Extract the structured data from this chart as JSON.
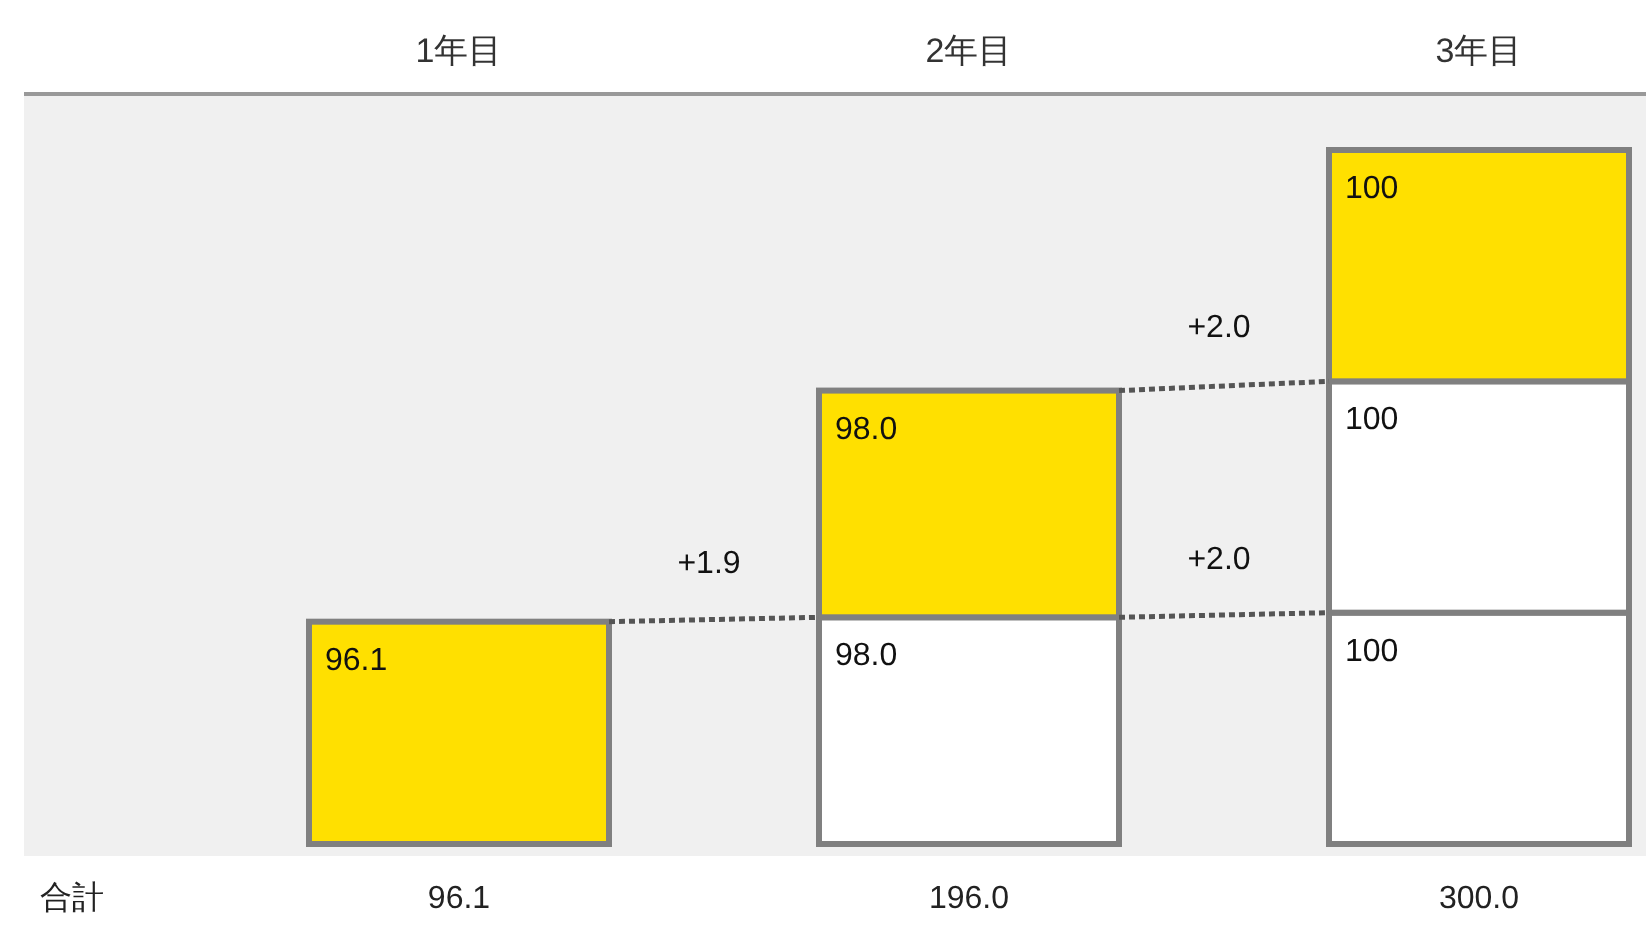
{
  "chart_data": {
    "type": "bar",
    "stacked": true,
    "categories": [
      "1年目",
      "2年目",
      "3年目"
    ],
    "series": [
      {
        "values": [
          96.1,
          98.0,
          100
        ],
        "colors": [
          "#ffe000",
          "#ffffff",
          "#ffffff"
        ],
        "value_labels": [
          "96.1",
          "98.0",
          "100"
        ]
      },
      {
        "values": [
          null,
          98.0,
          100
        ],
        "colors": [
          null,
          "#ffe000",
          "#ffffff"
        ],
        "value_labels": [
          null,
          "98.0",
          "100"
        ]
      },
      {
        "values": [
          null,
          null,
          100
        ],
        "colors": [
          null,
          null,
          "#ffe000"
        ],
        "value_labels": [
          null,
          null,
          "100"
        ]
      }
    ],
    "totals": [
      "96.1",
      "196.0",
      "300.0"
    ],
    "annotations": [
      "合計",
      "+1.9",
      "+2.0",
      "+2.0"
    ]
  }
}
